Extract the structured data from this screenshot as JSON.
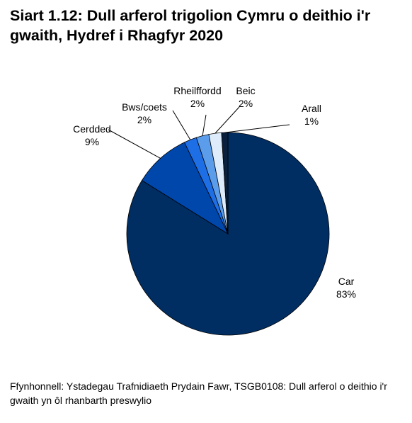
{
  "chart_data": {
    "type": "pie",
    "title": "Siart 1.12: Dull arferol trigolion Cymru o deithio i'r gwaith, Hydref i Rhagfyr 2020",
    "categories": [
      "Car",
      "Cerdded",
      "Bws/coets",
      "Rheilffordd",
      "Beic",
      "Arall"
    ],
    "values": [
      83,
      9,
      2,
      2,
      2,
      1
    ],
    "value_labels": [
      "83%",
      "9%",
      "2%",
      "2%",
      "2%",
      "1%"
    ],
    "colors": [
      "#002D62",
      "#0047AB",
      "#1E6FE6",
      "#5C9DEB",
      "#DDEBFA",
      "#0A1F3C"
    ],
    "legend": "none",
    "start": "12 o'clock",
    "direction": "clockwise"
  },
  "source": "Ffynhonnell: Ystadegau Trafnidiaeth Prydain Fawr, TSGB0108: Dull arferol o deithio i'r gwaith yn ôl rhanbarth preswylio"
}
